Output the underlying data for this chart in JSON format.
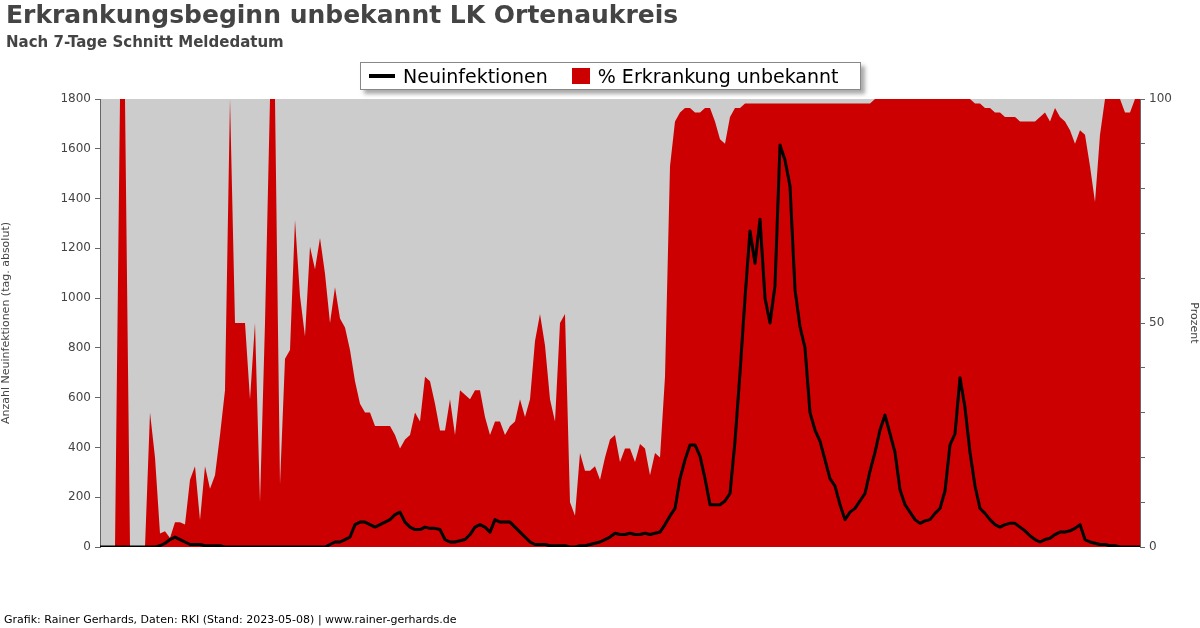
{
  "chart_data": {
    "type": "line",
    "title": "Erkrankungsbeginn unbekannt LK Ortenaukreis",
    "subtitle": "Nach 7-Tage Schnitt Meldedatum",
    "ylabel": "Anzahl Neuinfektionen (tag. absolut)",
    "y2label": "Prozent",
    "annotations": [
      "Grafik: Rainer Gerhards, Daten: RKI (Stand: 2023-05-08) | www.rainer-gerhards.de"
    ],
    "categories": [
      null,
      null,
      null,
      null,
      null,
      null,
      null,
      null,
      null,
      null,
      null,
      null,
      null,
      null,
      null,
      null,
      null,
      null,
      null,
      null,
      null,
      null,
      null,
      null,
      null,
      null,
      null,
      null,
      null,
      null,
      null,
      null,
      null,
      null,
      null,
      null,
      null,
      null,
      null,
      null,
      null,
      null,
      null,
      null,
      null,
      null,
      null,
      null,
      null,
      null,
      null,
      null,
      null,
      null,
      null,
      null,
      null,
      null,
      null,
      null,
      null,
      null,
      null,
      null,
      null,
      null,
      null,
      null,
      null,
      null,
      null,
      null,
      null,
      null,
      null,
      null,
      null,
      null,
      null,
      null,
      null,
      null,
      null,
      null,
      null,
      null,
      null,
      null,
      null,
      null,
      null,
      null,
      null,
      null,
      null,
      null,
      null,
      null,
      null,
      null,
      null,
      null,
      null,
      null,
      null,
      null,
      null,
      null,
      null,
      null,
      null,
      null,
      null,
      null,
      null,
      null,
      null,
      null,
      null,
      null,
      null,
      null,
      null,
      null,
      null,
      null,
      null,
      null,
      null,
      null,
      null,
      null,
      null,
      null,
      null,
      null,
      null,
      null,
      null,
      null,
      null,
      null,
      null,
      null,
      null,
      null,
      null,
      null,
      null,
      null,
      null,
      null,
      null,
      null,
      null,
      null,
      null,
      null,
      null,
      null,
      null,
      null,
      null,
      null,
      null,
      null,
      null,
      null,
      null,
      null,
      null,
      null,
      null,
      null,
      null,
      null,
      null,
      null,
      null,
      null,
      null,
      null,
      null,
      null,
      null,
      null,
      null,
      null,
      null,
      null,
      null,
      null,
      null,
      null,
      null,
      null,
      null,
      null,
      null,
      null,
      null,
      null,
      null,
      null,
      null,
      null,
      null,
      null,
      null
    ],
    "series": [
      {
        "name": "% Erkrankung unbekannt",
        "type": "area",
        "axis": "y2",
        "color": "#cc0000",
        "values": [
          0,
          0,
          0,
          0,
          100,
          100,
          0,
          0,
          0,
          0,
          30,
          20,
          3,
          3.5,
          2,
          5.5,
          5.5,
          5,
          15,
          18,
          6,
          18,
          13,
          16,
          25,
          35,
          100,
          50,
          50,
          50,
          33,
          50,
          10,
          50,
          100,
          100,
          14,
          42,
          44,
          73,
          56,
          47,
          67,
          62,
          69,
          61,
          50,
          58,
          51,
          49,
          44,
          37,
          32,
          30,
          30,
          27,
          27,
          27,
          27,
          25,
          22,
          24,
          25,
          30,
          28,
          38,
          37,
          32,
          26,
          26,
          33,
          25,
          35,
          34,
          33,
          35,
          35,
          29,
          25,
          28,
          28,
          25,
          27,
          28,
          33,
          29,
          33,
          46,
          52,
          45,
          33,
          28,
          50,
          52,
          10,
          7,
          21,
          17,
          17,
          18,
          15,
          20,
          24,
          25,
          19,
          22,
          22,
          19,
          23,
          22,
          16,
          21,
          20,
          38,
          85,
          95,
          97,
          98,
          98,
          97,
          97,
          98,
          98,
          95,
          91,
          90,
          96,
          98,
          98,
          99,
          99,
          99,
          99,
          99,
          99,
          99,
          99,
          99,
          99,
          99,
          99,
          99,
          99,
          99,
          99,
          99,
          99,
          99,
          99,
          99,
          99,
          99,
          99,
          99,
          99,
          100,
          100,
          100,
          100,
          100,
          100,
          100,
          100,
          100,
          100,
          100,
          100,
          100,
          100,
          100,
          100,
          100,
          100,
          100,
          100,
          99,
          99,
          98,
          98,
          97,
          97,
          96,
          96,
          96,
          95,
          95,
          95,
          95,
          96,
          97,
          95,
          98,
          96,
          95,
          93,
          90,
          93,
          92,
          85,
          77,
          92,
          100,
          100,
          100,
          100,
          97,
          97,
          100,
          100
        ]
      },
      {
        "name": "Neuinfektionen",
        "type": "line",
        "axis": "y",
        "color": "#000000",
        "values": [
          0,
          0,
          0,
          0,
          0,
          0,
          0,
          0,
          0,
          0,
          0,
          0,
          5,
          15,
          30,
          40,
          30,
          20,
          10,
          10,
          10,
          5,
          5,
          5,
          5,
          0,
          0,
          0,
          0,
          0,
          0,
          0,
          0,
          0,
          0,
          0,
          0,
          0,
          0,
          0,
          0,
          0,
          0,
          0,
          0,
          0,
          10,
          20,
          20,
          30,
          40,
          90,
          100,
          100,
          90,
          80,
          90,
          100,
          110,
          130,
          140,
          100,
          80,
          70,
          70,
          80,
          75,
          75,
          70,
          30,
          20,
          20,
          25,
          30,
          50,
          80,
          90,
          80,
          60,
          110,
          100,
          100,
          100,
          80,
          60,
          40,
          20,
          10,
          10,
          10,
          5,
          5,
          5,
          5,
          0,
          0,
          5,
          5,
          10,
          15,
          20,
          30,
          40,
          55,
          50,
          50,
          55,
          50,
          50,
          55,
          50,
          55,
          60,
          90,
          125,
          155,
          275,
          350,
          410,
          410,
          365,
          275,
          170,
          170,
          170,
          185,
          215,
          425,
          700,
          1000,
          1270,
          1140,
          1317,
          1000,
          900,
          1050,
          1615,
          1555,
          1450,
          1034,
          885,
          800,
          540,
          470,
          425,
          350,
          275,
          245,
          170,
          110,
          140,
          155,
          185,
          215,
          305,
          380,
          470,
          530,
          455,
          380,
          230,
          170,
          140,
          110,
          95,
          105,
          110,
          135,
          155,
          225,
          410,
          455,
          680,
          560,
          380,
          245,
          155,
          135,
          110,
          90,
          80,
          90,
          95,
          95,
          80,
          65,
          45,
          30,
          20,
          30,
          35,
          50,
          60,
          60,
          65,
          75,
          90,
          30,
          20,
          15,
          10,
          10,
          5,
          5,
          0,
          0,
          0,
          0,
          0
        ]
      }
    ],
    "ylim": [
      0,
      1800
    ],
    "yticks": [
      0,
      200,
      400,
      600,
      800,
      1000,
      1200,
      1400,
      1600,
      1800
    ],
    "y2lim": [
      0,
      100
    ],
    "y2ticks": [
      0,
      {
        "value": 10,
        "label": null
      },
      {
        "value": 20,
        "label": null
      },
      {
        "value": 30,
        "label": null
      },
      {
        "value": 40,
        "label": null
      },
      50,
      {
        "value": 60,
        "label": null
      },
      {
        "value": 70,
        "label": null
      },
      {
        "value": 80,
        "label": null
      },
      {
        "value": 90,
        "label": null
      },
      100
    ],
    "grid": false,
    "legend": "top"
  }
}
